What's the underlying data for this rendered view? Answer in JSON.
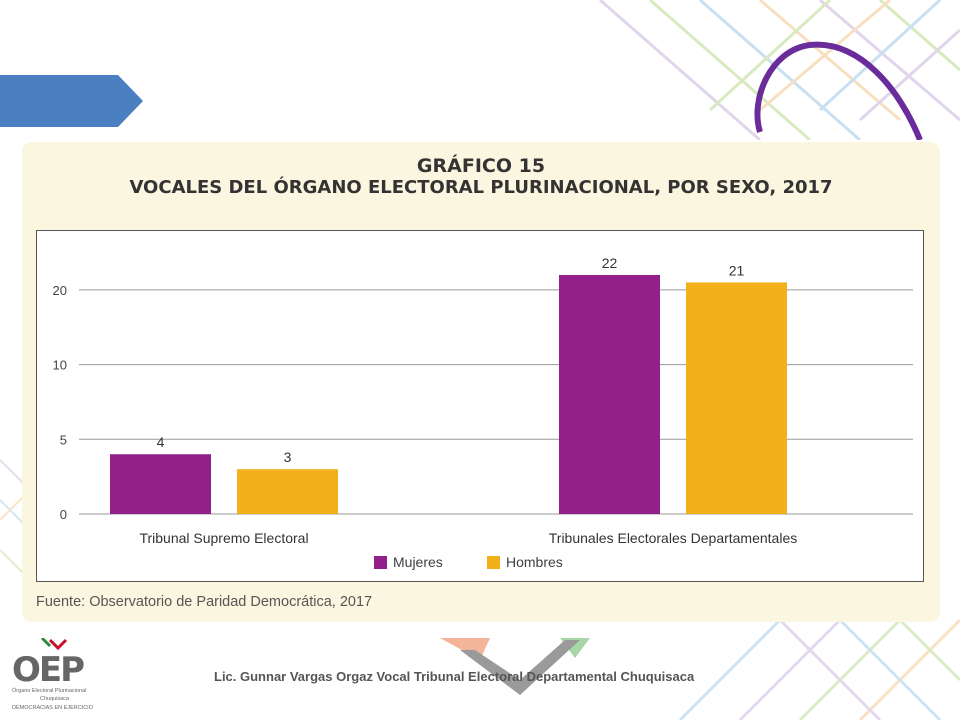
{
  "chart_data": {
    "type": "bar",
    "title": "GRÁFICO 15",
    "subtitle": "VOCALES DEL ÓRGANO ELECTORAL PLURINACIONAL, POR SEXO, 2017",
    "categories": [
      "Tribunal Supremo Electoral",
      "Tribunales Electorales Departamentales"
    ],
    "series": [
      {
        "name": "Mujeres",
        "values": [
          4,
          22
        ],
        "color": "#93208a"
      },
      {
        "name": "Hombres",
        "values": [
          3,
          21
        ],
        "color": "#f2b01b"
      }
    ],
    "y_ticks": [
      0,
      5,
      10,
      20
    ],
    "ylim": [
      0,
      23
    ],
    "grid": true,
    "legend_placement": "bottom-center",
    "source": "Fuente: Observatorio de Paridad Democrática, 2017"
  },
  "logo": {
    "name": "OEP",
    "line1": "Órgano Electoral Plurinacional",
    "line2": "Chuquisaca",
    "line3": "DEMOCRACIAS EN EJERCICIO"
  },
  "footer": {
    "text": "Lic. Gunnar Vargas Orgaz Vocal Tribunal Electoral Departamental Chuquisaca"
  },
  "colors": {
    "accent": "#4a7fc1",
    "panel": "#fbf6df"
  }
}
